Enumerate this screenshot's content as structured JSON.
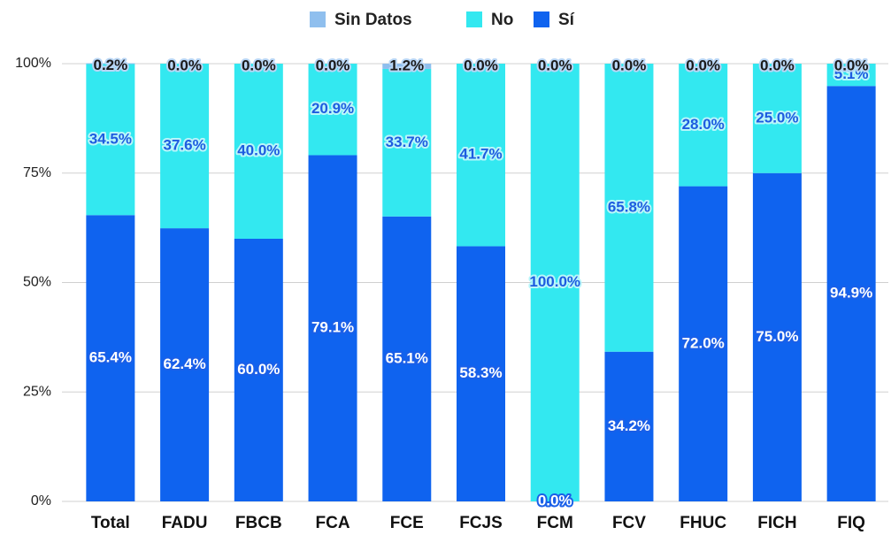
{
  "chart_data": {
    "type": "stacked_bar",
    "categories": [
      "Total",
      "FADU",
      "FBCB",
      "FCA",
      "FCE",
      "FCJS",
      "FCM",
      "FCV",
      "FHUC",
      "FICH",
      "FIQ"
    ],
    "series": [
      {
        "name": "Sin Datos",
        "color": "#8fbfee",
        "values": [
          0.2,
          0.0,
          0.0,
          0.0,
          1.2,
          0.0,
          0.0,
          0.0,
          0.0,
          0.0,
          0.0
        ],
        "value_labels": [
          "0.2%",
          "0.0%",
          "0.0%",
          "0.0%",
          "1.2%",
          "0.0%",
          "0.0%",
          "0.0%",
          "0.0%",
          "0.0%",
          "0.0%"
        ]
      },
      {
        "name": "No",
        "color": "#33e8f0",
        "values": [
          34.5,
          37.6,
          40.0,
          20.9,
          33.7,
          41.7,
          100.0,
          65.8,
          28.0,
          25.0,
          5.1
        ],
        "value_labels": [
          "34.5%",
          "37.6%",
          "40.0%",
          "20.9%",
          "33.7%",
          "41.7%",
          "100.0%",
          "65.8%",
          "28.0%",
          "25.0%",
          "5.1%"
        ]
      },
      {
        "name": "Sí",
        "color": "#0f63ef",
        "values": [
          65.4,
          62.4,
          60.0,
          79.1,
          65.1,
          58.3,
          0.0,
          34.2,
          72.0,
          75.0,
          94.9
        ],
        "value_labels": [
          "65.4%",
          "62.4%",
          "60.0%",
          "79.1%",
          "65.1%",
          "58.3%",
          "0.0%",
          "34.2%",
          "72.0%",
          "75.0%",
          "94.9%"
        ]
      }
    ],
    "ylim": [
      0,
      100
    ],
    "yticks": [
      {
        "value": 0,
        "label": "0%"
      },
      {
        "value": 25,
        "label": "25%"
      },
      {
        "value": 50,
        "label": "50%"
      },
      {
        "value": 75,
        "label": "75%"
      },
      {
        "value": 100,
        "label": "100%"
      }
    ],
    "grid": true,
    "legend": "top"
  }
}
